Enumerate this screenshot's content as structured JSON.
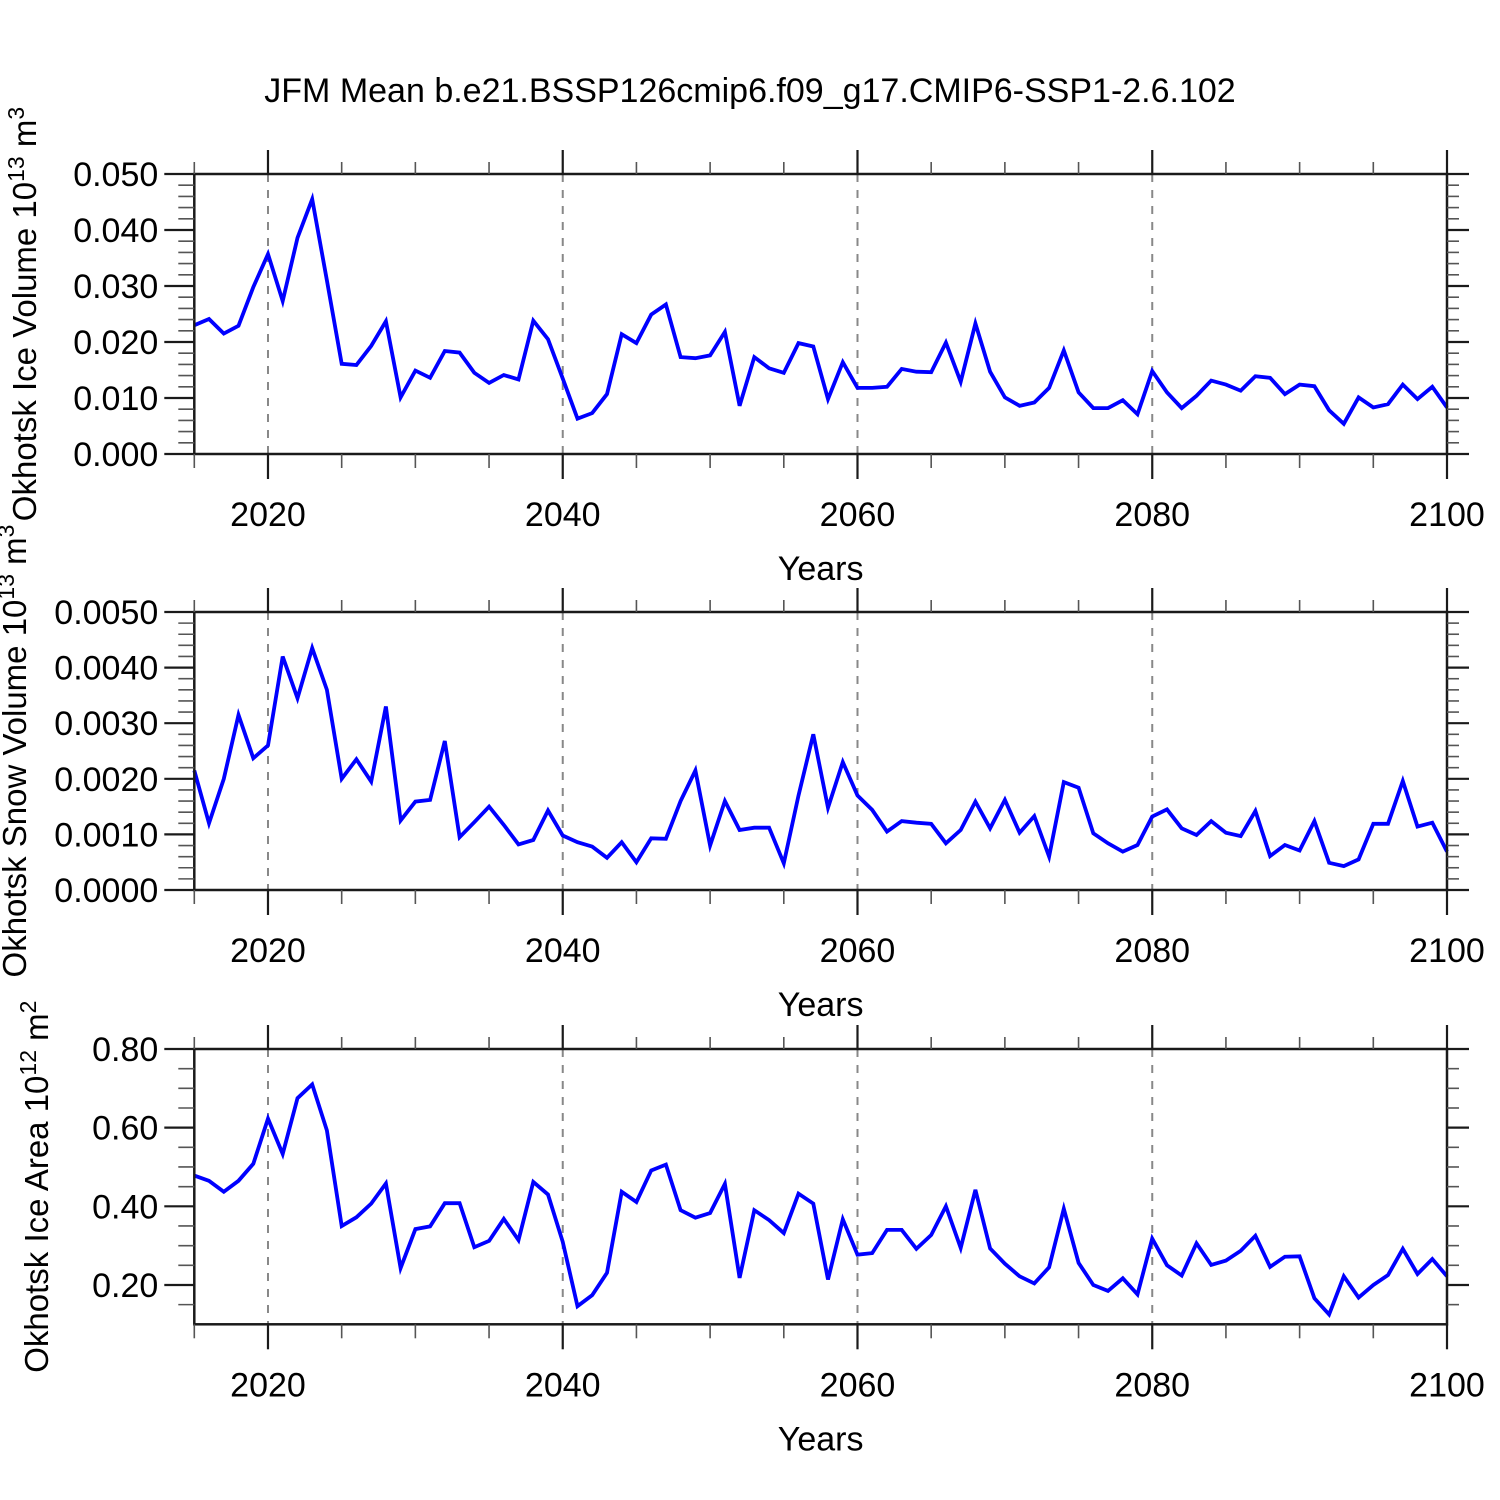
{
  "chart_data": {
    "type": "line",
    "title": "JFM Mean b.e21.BSSP126cmip6.f09_g17.CMIP6-SSP1-2.6.102",
    "x": {
      "label": "Years",
      "start": 2015,
      "end": 2100,
      "major_ticks": [
        2020,
        2040,
        2060,
        2080,
        2100
      ],
      "minor_tick_step": 5,
      "gridline_years": [
        2020,
        2040,
        2060,
        2080
      ]
    },
    "colors": {
      "line": "#0000ff",
      "gridline": "#888888",
      "axis": "#1a1a1a",
      "text": "#000000"
    },
    "legend": "none",
    "grid": "vertical-dashed",
    "panels": [
      {
        "name": "okhotsk-ice-volume",
        "ylabel_text": "Okhotsk Ice Volume 10^13 m^3",
        "ylabel_parts": [
          {
            "t": "Okhotsk Ice Volume 10"
          },
          {
            "t": "13",
            "sup": true
          },
          {
            "t": " m"
          },
          {
            "t": "3",
            "sup": true
          }
        ],
        "ylim": [
          0,
          0.05
        ],
        "y_major_ticks": [
          0.0,
          0.01,
          0.02,
          0.03,
          0.04,
          0.05
        ],
        "y_tick_labels": [
          "0.000",
          "0.010",
          "0.020",
          "0.030",
          "0.040",
          "0.050"
        ],
        "y_minor_step": 0.002,
        "values": [
          0.023,
          0.0241,
          0.0215,
          0.0229,
          0.0298,
          0.0357,
          0.0273,
          0.0386,
          0.0455,
          0.031,
          0.0161,
          0.0159,
          0.0193,
          0.0237,
          0.0101,
          0.0149,
          0.0136,
          0.0184,
          0.0181,
          0.0145,
          0.0127,
          0.0141,
          0.0133,
          0.0238,
          0.0205,
          0.0135,
          0.0063,
          0.0073,
          0.0107,
          0.0214,
          0.0198,
          0.0249,
          0.0267,
          0.0173,
          0.0171,
          0.0176,
          0.0218,
          0.0086,
          0.0173,
          0.0153,
          0.0145,
          0.0198,
          0.0192,
          0.0098,
          0.0164,
          0.0118,
          0.0118,
          0.012,
          0.0152,
          0.0147,
          0.0146,
          0.0199,
          0.0129,
          0.0233,
          0.0147,
          0.0101,
          0.0086,
          0.0092,
          0.0118,
          0.0185,
          0.011,
          0.0082,
          0.0082,
          0.0096,
          0.0071,
          0.0148,
          0.011,
          0.0082,
          0.0104,
          0.0131,
          0.0124,
          0.0113,
          0.0139,
          0.0136,
          0.0107,
          0.0124,
          0.0121,
          0.0078,
          0.0054,
          0.0101,
          0.0083,
          0.0089,
          0.0124,
          0.0098,
          0.012,
          0.0083
        ]
      },
      {
        "name": "okhotsk-snow-volume",
        "ylabel_text": "Okhotsk Snow Volume 10^13 m^3",
        "ylabel_parts": [
          {
            "t": "Okhotsk Snow Volume 10"
          },
          {
            "t": "13",
            "sup": true
          },
          {
            "t": " m"
          },
          {
            "t": "3",
            "sup": true
          }
        ],
        "ylim": [
          0,
          0.005
        ],
        "y_major_ticks": [
          0.0,
          0.001,
          0.002,
          0.003,
          0.004,
          0.005
        ],
        "y_tick_labels": [
          "0.0000",
          "0.0010",
          "0.0020",
          "0.0030",
          "0.0040",
          "0.0050"
        ],
        "y_minor_step": 0.0002,
        "values": [
          0.00215,
          0.0012,
          0.002,
          0.00315,
          0.00237,
          0.0026,
          0.0042,
          0.00345,
          0.00435,
          0.0036,
          0.002,
          0.00235,
          0.00195,
          0.0033,
          0.00125,
          0.00159,
          0.00162,
          0.00268,
          0.00095,
          0.00122,
          0.0015,
          0.00117,
          0.00082,
          0.0009,
          0.00143,
          0.00098,
          0.00086,
          0.00078,
          0.00058,
          0.00086,
          0.0005,
          0.00093,
          0.00092,
          0.0016,
          0.00215,
          0.0008,
          0.0016,
          0.00108,
          0.00112,
          0.00112,
          0.00048,
          0.0017,
          0.0028,
          0.00148,
          0.0023,
          0.0017,
          0.00144,
          0.00105,
          0.00124,
          0.00121,
          0.00119,
          0.00084,
          0.00108,
          0.00159,
          0.00111,
          0.00162,
          0.00103,
          0.00133,
          0.0006,
          0.00194,
          0.00184,
          0.00102,
          0.00084,
          0.00069,
          0.00081,
          0.00132,
          0.00145,
          0.00111,
          0.00099,
          0.00124,
          0.00103,
          0.00097,
          0.00142,
          0.00061,
          0.00081,
          0.00071,
          0.00124,
          0.00049,
          0.00043,
          0.00055,
          0.00119,
          0.00119,
          0.00196,
          0.00114,
          0.00121,
          0.00069
        ]
      },
      {
        "name": "okhotsk-ice-area",
        "ylabel_text": "Okhotsk Ice Area 10^12 m^2",
        "ylabel_parts": [
          {
            "t": "Okhotsk Ice Area 10"
          },
          {
            "t": "12",
            "sup": true
          },
          {
            "t": " m"
          },
          {
            "t": "2",
            "sup": true
          }
        ],
        "ylim": [
          0.1,
          0.8
        ],
        "y_major_ticks": [
          0.2,
          0.4,
          0.6,
          0.8
        ],
        "y_tick_labels": [
          "0.20",
          "0.40",
          "0.60",
          "0.80"
        ],
        "y_minor_step": 0.05,
        "values": [
          0.478,
          0.465,
          0.437,
          0.465,
          0.508,
          0.623,
          0.533,
          0.675,
          0.71,
          0.593,
          0.35,
          0.372,
          0.407,
          0.458,
          0.243,
          0.342,
          0.349,
          0.408,
          0.408,
          0.296,
          0.312,
          0.368,
          0.314,
          0.462,
          0.43,
          0.31,
          0.146,
          0.174,
          0.231,
          0.437,
          0.411,
          0.491,
          0.506,
          0.39,
          0.371,
          0.383,
          0.457,
          0.218,
          0.39,
          0.365,
          0.332,
          0.432,
          0.407,
          0.214,
          0.367,
          0.277,
          0.281,
          0.34,
          0.34,
          0.292,
          0.327,
          0.4,
          0.294,
          0.442,
          0.293,
          0.254,
          0.222,
          0.204,
          0.245,
          0.394,
          0.256,
          0.2,
          0.185,
          0.217,
          0.176,
          0.318,
          0.25,
          0.224,
          0.306,
          0.251,
          0.262,
          0.287,
          0.325,
          0.246,
          0.272,
          0.273,
          0.166,
          0.125,
          0.222,
          0.168,
          0.2,
          0.225,
          0.292,
          0.228,
          0.266,
          0.222
        ]
      }
    ]
  }
}
